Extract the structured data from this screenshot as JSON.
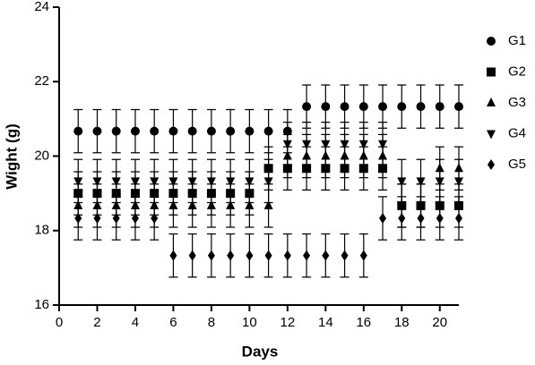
{
  "chart_data": {
    "type": "scatter",
    "x_label": "Days",
    "y_label": "Wight (g)",
    "x": [
      1,
      2,
      3,
      4,
      5,
      6,
      7,
      8,
      9,
      10,
      11,
      12,
      13,
      14,
      15,
      16,
      17,
      18,
      19,
      20,
      21
    ],
    "xlim": [
      0,
      21
    ],
    "xticks": [
      0,
      2,
      4,
      6,
      8,
      10,
      12,
      14,
      16,
      18,
      20
    ],
    "ylim": [
      16,
      24
    ],
    "yticks": [
      16,
      18,
      20,
      22,
      24
    ],
    "series": [
      {
        "name": "G1",
        "marker": "circle",
        "color": "#000000",
        "error": 0.58,
        "values": [
          20.67,
          20.67,
          20.67,
          20.67,
          20.67,
          20.67,
          20.67,
          20.67,
          20.67,
          20.67,
          20.67,
          20.67,
          21.33,
          21.33,
          21.33,
          21.33,
          21.33,
          21.33,
          21.33,
          21.33,
          21.33
        ]
      },
      {
        "name": "G2",
        "marker": "square",
        "color": "#000000",
        "error": 0.58,
        "values": [
          19,
          19,
          19,
          19,
          19,
          19,
          19,
          19,
          19,
          19,
          19.67,
          19.67,
          19.67,
          19.67,
          19.67,
          19.67,
          19.67,
          18.67,
          18.67,
          18.67,
          18.67
        ]
      },
      {
        "name": "G3",
        "marker": "triangle-up",
        "color": "#000000",
        "error": 0.58,
        "values": [
          18.67,
          18.67,
          18.67,
          18.67,
          18.67,
          18.67,
          18.67,
          18.67,
          18.67,
          18.67,
          18.67,
          20,
          20,
          20,
          20,
          20,
          20,
          18.67,
          18.67,
          19.67,
          19.67
        ]
      },
      {
        "name": "G4",
        "marker": "triangle-down",
        "color": "#000000",
        "error": 0.58,
        "values": [
          19.33,
          19.33,
          19.33,
          19.33,
          19.33,
          19.33,
          19.33,
          19.33,
          19.33,
          19.33,
          19.33,
          20.33,
          20.33,
          20.33,
          20.33,
          20.33,
          20.33,
          19.33,
          19.33,
          19.33,
          19.33
        ]
      },
      {
        "name": "G5",
        "marker": "diamond",
        "color": "#000000",
        "error": 0.58,
        "values": [
          18.33,
          18.33,
          18.33,
          18.33,
          18.33,
          17.33,
          17.33,
          17.33,
          17.33,
          17.33,
          17.33,
          17.33,
          17.33,
          17.33,
          17.33,
          17.33,
          18.33,
          18.33,
          18.33,
          18.33,
          18.33
        ]
      }
    ]
  }
}
